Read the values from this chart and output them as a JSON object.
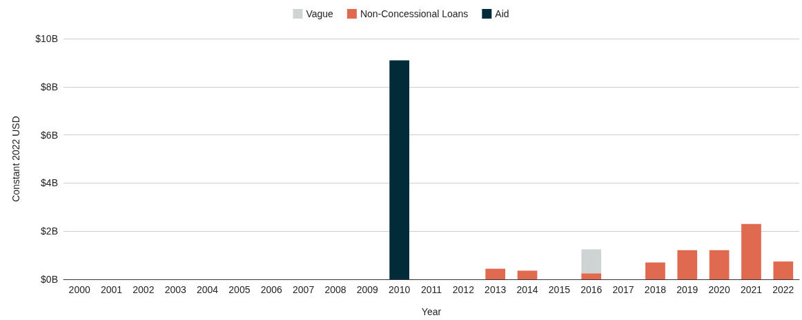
{
  "chart_data": {
    "type": "bar",
    "stacked": true,
    "xlabel": "Year",
    "ylabel": "Constant 2022 USD",
    "categories": [
      "2000",
      "2001",
      "2002",
      "2003",
      "2004",
      "2005",
      "2006",
      "2007",
      "2008",
      "2009",
      "2010",
      "2011",
      "2012",
      "2013",
      "2014",
      "2015",
      "2016",
      "2017",
      "2018",
      "2019",
      "2020",
      "2021",
      "2022"
    ],
    "series": [
      {
        "name": "Aid",
        "color": "#022b3a",
        "values": [
          0,
          0,
          0,
          0,
          0,
          0,
          0,
          0,
          0,
          0,
          9.1,
          0,
          0,
          0,
          0,
          0,
          0,
          0,
          0,
          0,
          0,
          0,
          0
        ]
      },
      {
        "name": "Non-Concessional Loans",
        "color": "#e06a50",
        "values": [
          0,
          0,
          0,
          0,
          0,
          0,
          0,
          0,
          0,
          0,
          0,
          0,
          0,
          0.44,
          0.36,
          0,
          0.25,
          0,
          0.7,
          1.21,
          1.21,
          2.3,
          0.74
        ]
      },
      {
        "name": "Vague",
        "color": "#ced4d4",
        "values": [
          0,
          0,
          0,
          0,
          0,
          0,
          0,
          0,
          0,
          0,
          0,
          0,
          0,
          0,
          0,
          0,
          1.0,
          0,
          0,
          0,
          0,
          0,
          0
        ]
      }
    ],
    "ylim": [
      0,
      10
    ],
    "yticks": [
      {
        "value": 0,
        "label": "$0B"
      },
      {
        "value": 2,
        "label": "$2B"
      },
      {
        "value": 4,
        "label": "$4B"
      },
      {
        "value": 6,
        "label": "$6B"
      },
      {
        "value": 8,
        "label": "$8B"
      },
      {
        "value": 10,
        "label": "$10B"
      }
    ],
    "grid": "y",
    "legend": "top"
  }
}
